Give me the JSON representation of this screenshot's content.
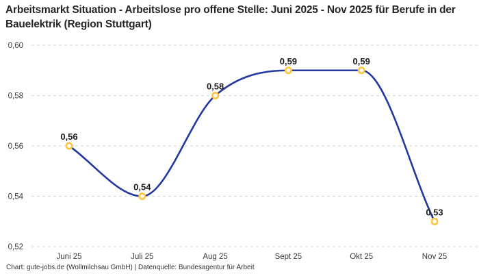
{
  "header": {
    "title": "Arbeitsmarkt Situation - Arbeitslose pro offene Stelle: Juni 2025 - Nov 2025 für Berufe in der Bauelektrik (Region Stuttgart)"
  },
  "footer": {
    "credit": "Chart: gute-jobs.de (Wollmilchsau GmbH) | Datenquelle: Bundesagentur für Arbeit"
  },
  "chart_data": {
    "type": "line",
    "title": "Arbeitsmarkt Situation - Arbeitslose pro offene Stelle: Juni 2025 - Nov 2025 für Berufe in der Bauelektrik (Region Stuttgart)",
    "categories": [
      "Juni 25",
      "Juli 25",
      "Aug 25",
      "Sept 25",
      "Okt 25",
      "Nov 25"
    ],
    "values": [
      0.56,
      0.54,
      0.58,
      0.59,
      0.59,
      0.53
    ],
    "point_labels": [
      "0,56",
      "0,54",
      "0,58",
      "0,59",
      "0,59",
      "0,53"
    ],
    "y_ticks": [
      0.52,
      0.54,
      0.56,
      0.58,
      0.6
    ],
    "y_tick_labels": [
      "0,52",
      "0,54",
      "0,56",
      "0,58",
      "0,60"
    ],
    "ylim": [
      0.52,
      0.6
    ],
    "xlabel": "",
    "ylabel": "",
    "grid": "horizontal-dashed",
    "legend": "none",
    "line_smoothing": "monotone",
    "colors": {
      "line": "#2438A2",
      "marker_stroke": "#FFC53D",
      "marker_fill": "#FFFFFF",
      "grid": "#D6D6D6",
      "title_text": "#262626",
      "tick_text": "#3A3A3A",
      "value_label_text": "#1A1A1A",
      "footer_text": "#333333",
      "background": "#FFFFFF"
    }
  }
}
